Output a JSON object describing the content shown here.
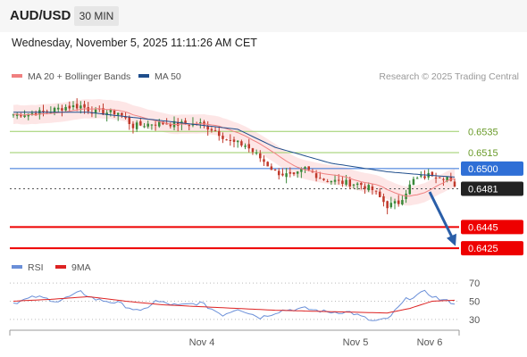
{
  "header": {
    "symbol": "AUD/USD",
    "timeframe": "30 MIN"
  },
  "datetime": "Wednesday, November 5, 2025 11:11:26 AM CET",
  "legend": {
    "ma20_label": "MA 20 + Bollinger Bands",
    "ma50_label": "MA 50",
    "rsi_label": "RSI",
    "ma9_label": "9MA"
  },
  "credit": "Research © 2025 Trading Central",
  "colors": {
    "ma20": "#f08080",
    "ma50": "#1f4e8c",
    "bollinger": "#fde2e2",
    "candle_up": "#3a8a3a",
    "candle_down": "#c0392b",
    "resistance": "#9acd66",
    "pivot": "#2f6fd6",
    "support": "#ee0000",
    "rsi": "#6a8fd8",
    "rsi_ma": "#dd2222",
    "projection": "#2a5ea8"
  },
  "chart_data": {
    "type": "candlestick",
    "x_ticks": [
      "Nov 4",
      "Nov 5",
      "Nov 6"
    ],
    "levels": [
      {
        "label": "0.6535",
        "value": 0.6535,
        "kind": "resistance"
      },
      {
        "label": "0.6515",
        "value": 0.6515,
        "kind": "resistance"
      },
      {
        "label": "0.6500",
        "value": 0.65,
        "kind": "pivot"
      },
      {
        "label": "0.6481",
        "value": 0.6481,
        "kind": "last"
      },
      {
        "label": "0.6445",
        "value": 0.6445,
        "kind": "support"
      },
      {
        "label": "0.6425",
        "value": 0.6425,
        "kind": "support"
      }
    ],
    "price_waypoints": [
      [
        0,
        0.6551
      ],
      [
        8,
        0.6553
      ],
      [
        14,
        0.6558
      ],
      [
        18,
        0.6559
      ],
      [
        22,
        0.6553
      ],
      [
        28,
        0.6553
      ],
      [
        32,
        0.654
      ],
      [
        38,
        0.6543
      ],
      [
        44,
        0.6542
      ],
      [
        50,
        0.6542
      ],
      [
        54,
        0.6536
      ],
      [
        58,
        0.6525
      ],
      [
        62,
        0.6522
      ],
      [
        66,
        0.651
      ],
      [
        70,
        0.6497
      ],
      [
        75,
        0.6492
      ],
      [
        78,
        0.65
      ],
      [
        83,
        0.649
      ],
      [
        88,
        0.6487
      ],
      [
        93,
        0.6485
      ],
      [
        96,
        0.648
      ],
      [
        100,
        0.6465
      ],
      [
        103,
        0.6468
      ],
      [
        107,
        0.6489
      ],
      [
        112,
        0.6495
      ],
      [
        116,
        0.6492
      ],
      [
        118,
        0.6481
      ]
    ],
    "ma50_waypoints": [
      [
        0,
        0.6553
      ],
      [
        20,
        0.6553
      ],
      [
        40,
        0.6545
      ],
      [
        60,
        0.6537
      ],
      [
        70,
        0.652
      ],
      [
        85,
        0.6505
      ],
      [
        100,
        0.6497
      ],
      [
        110,
        0.6494
      ],
      [
        118,
        0.6492
      ]
    ],
    "price_range": [
      0.6415,
      0.6568
    ],
    "projection": {
      "from": 0.6478,
      "to": 0.6427
    },
    "rsi": {
      "ticks": [
        70,
        50,
        30
      ],
      "range": [
        20,
        75
      ],
      "rsi_waypoints": [
        [
          0,
          48
        ],
        [
          6,
          55
        ],
        [
          12,
          50
        ],
        [
          18,
          60
        ],
        [
          22,
          52
        ],
        [
          28,
          48
        ],
        [
          34,
          38
        ],
        [
          38,
          50
        ],
        [
          44,
          45
        ],
        [
          50,
          48
        ],
        [
          56,
          35
        ],
        [
          60,
          42
        ],
        [
          66,
          32
        ],
        [
          72,
          40
        ],
        [
          78,
          42
        ],
        [
          84,
          38
        ],
        [
          90,
          38
        ],
        [
          96,
          28
        ],
        [
          100,
          30
        ],
        [
          105,
          52
        ],
        [
          110,
          60
        ],
        [
          114,
          52
        ],
        [
          118,
          48
        ]
      ],
      "ma_waypoints": [
        [
          0,
          50
        ],
        [
          10,
          52
        ],
        [
          20,
          55
        ],
        [
          30,
          50
        ],
        [
          40,
          46
        ],
        [
          50,
          44
        ],
        [
          60,
          42
        ],
        [
          70,
          40
        ],
        [
          80,
          39
        ],
        [
          90,
          38
        ],
        [
          100,
          37
        ],
        [
          106,
          42
        ],
        [
          112,
          50
        ],
        [
          118,
          51
        ]
      ]
    }
  }
}
